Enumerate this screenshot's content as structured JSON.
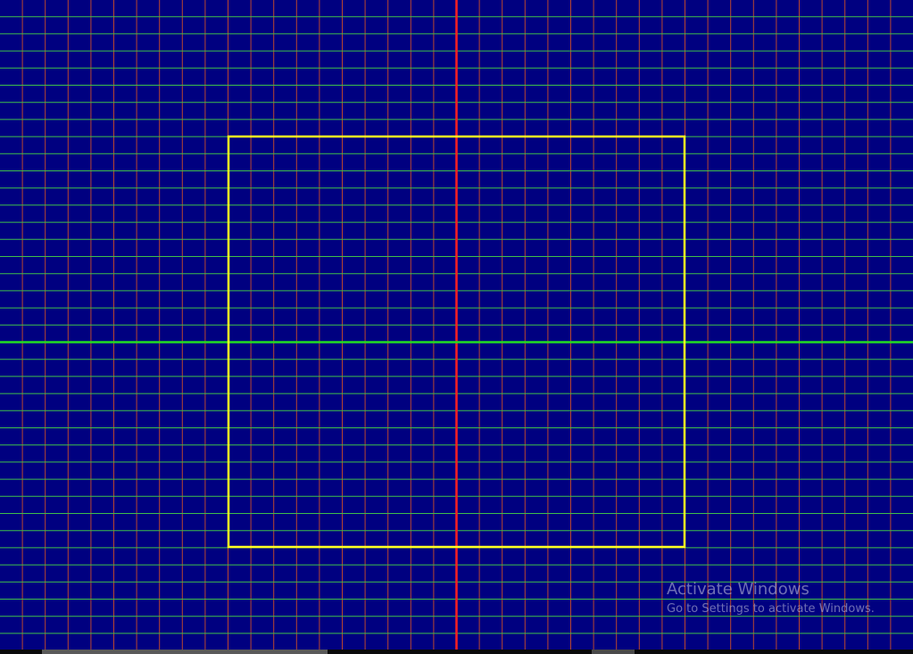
{
  "canvas": {
    "background_color": "#000080",
    "minor_vertical_line_color": "#b8462f",
    "minor_horizontal_line_color": "#3fbf4a",
    "x_axis_color": "#22dd22",
    "y_axis_color": "#ff2020",
    "rectangle_color": "#ffff22"
  },
  "watermark": {
    "title": "Activate Windows",
    "subtitle": "Go to Settings to activate Windows."
  }
}
